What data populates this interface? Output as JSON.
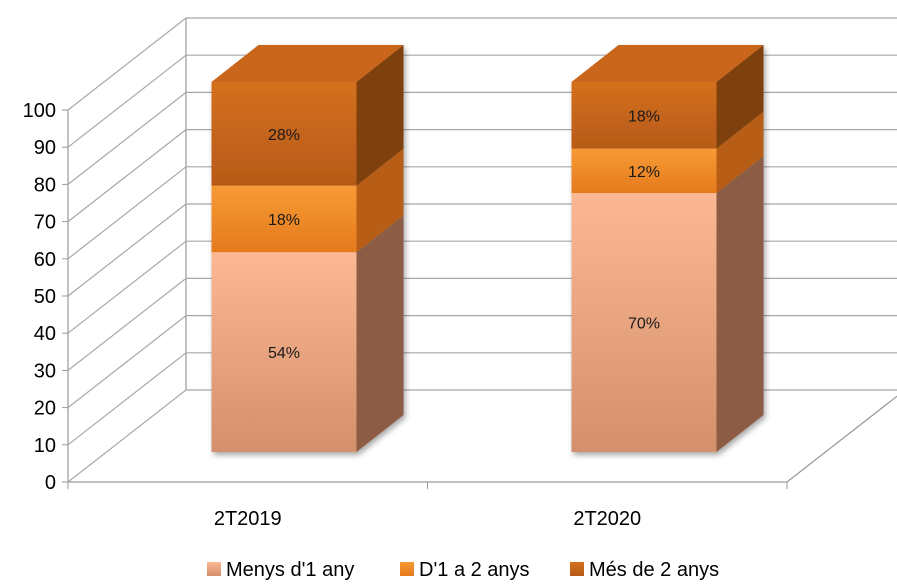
{
  "chart_data": {
    "type": "bar",
    "stacked": true,
    "three_d": true,
    "categories": [
      "2T2019",
      "2T2020"
    ],
    "series": [
      {
        "name": "Menys d'1 any",
        "values": [
          54,
          70
        ],
        "labels": [
          "54%",
          "70%"
        ],
        "color": "#e8a07a"
      },
      {
        "name": "D'1 a 2 anys",
        "values": [
          18,
          12
        ],
        "labels": [
          "18%",
          "12%"
        ],
        "color": "#f08a2c"
      },
      {
        "name": "Més de 2 anys",
        "values": [
          28,
          18
        ],
        "labels": [
          "28%",
          "18%"
        ],
        "color": "#c4631c"
      }
    ],
    "yticks": [
      "0",
      "10",
      "20",
      "30",
      "40",
      "50",
      "60",
      "70",
      "80",
      "90",
      "100"
    ],
    "ylim": [
      0,
      100
    ],
    "grid": true,
    "legend_position": "bottom"
  }
}
